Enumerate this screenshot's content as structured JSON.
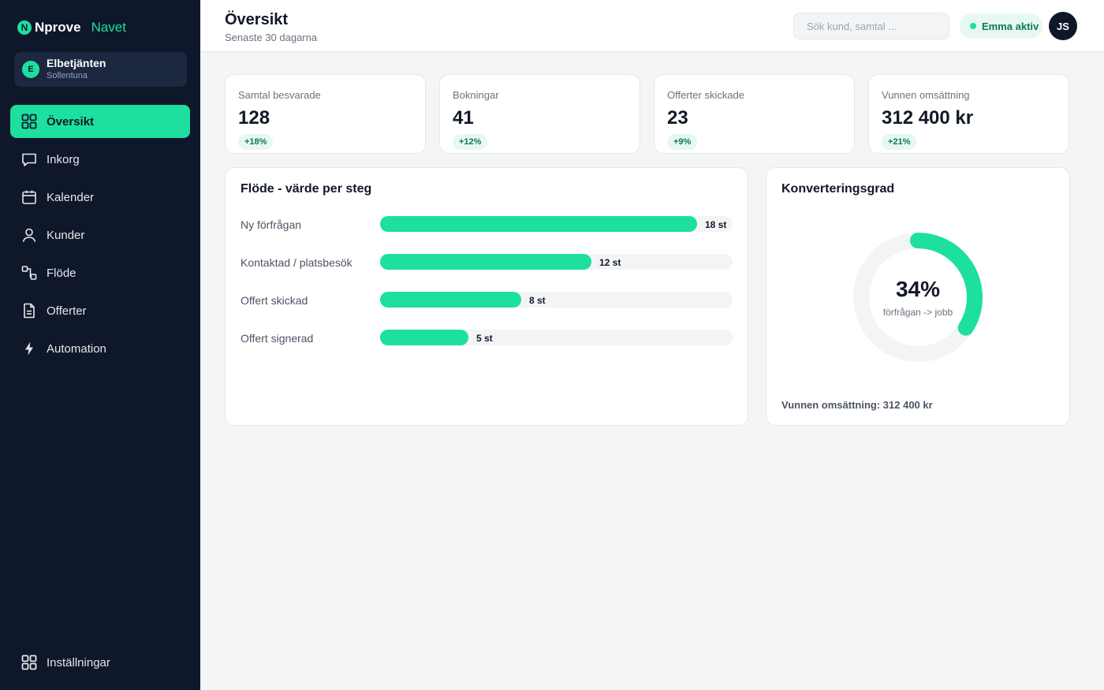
{
  "brand": {
    "logo_letter": "N",
    "name": "Nprove",
    "product": "Navet",
    "accent": "#1ddf9f"
  },
  "org": {
    "initial": "E",
    "name": "Elbetjänten",
    "location": "Sollentuna"
  },
  "nav": {
    "items": [
      {
        "label": "Översikt",
        "icon": "grid-icon",
        "active": true
      },
      {
        "label": "Inkorg",
        "icon": "chat-icon"
      },
      {
        "label": "Kalender",
        "icon": "calendar-icon"
      },
      {
        "label": "Kunder",
        "icon": "user-icon"
      },
      {
        "label": "Flöde",
        "icon": "flow-icon"
      },
      {
        "label": "Offerter",
        "icon": "document-icon"
      },
      {
        "label": "Automation",
        "icon": "bolt-icon"
      }
    ],
    "settings": {
      "label": "Inställningar",
      "icon": "grid-icon"
    }
  },
  "header": {
    "title": "Översikt",
    "subtitle": "Senaste 30 dagarna",
    "search_placeholder": "Sök kund, samtal ...",
    "status": "Emma aktiv",
    "user_initials": "JS"
  },
  "kpis": [
    {
      "label": "Samtal besvarade",
      "value": "128",
      "delta": "+18%"
    },
    {
      "label": "Bokningar",
      "value": "41",
      "delta": "+12%"
    },
    {
      "label": "Offerter skickade",
      "value": "23",
      "delta": "+9%"
    },
    {
      "label": "Vunnen omsättning",
      "value": "312 400 kr",
      "delta": "+21%"
    }
  ],
  "flow": {
    "title": "Flöde - värde per steg",
    "max": 18,
    "steps": [
      {
        "label": "Ny förfrågan",
        "count": 18,
        "value_label": "18 st"
      },
      {
        "label": "Kontaktad / platsbesök",
        "count": 12,
        "value_label": "12 st"
      },
      {
        "label": "Offert skickad",
        "count": 8,
        "value_label": "8 st"
      },
      {
        "label": "Offert signerad",
        "count": 5,
        "value_label": "5 st"
      }
    ]
  },
  "conversion": {
    "title": "Konverteringsgrad",
    "percent": 34,
    "percent_label": "34%",
    "caption": "förfrågan -> jobb",
    "footer": "Vunnen omsättning: 312 400 kr"
  }
}
